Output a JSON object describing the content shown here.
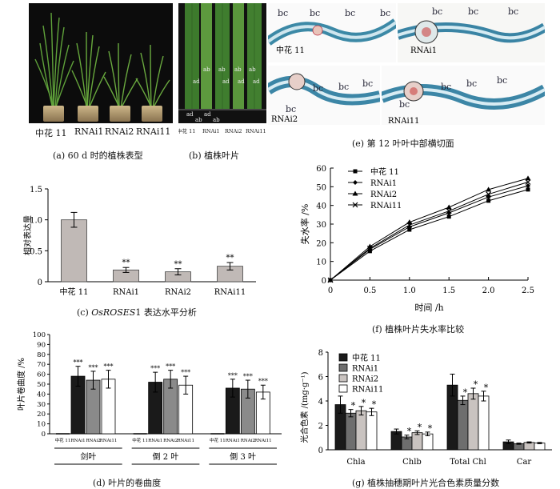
{
  "panel_a": {
    "labels": [
      "中花 11",
      "RNAi1",
      "RNAi2",
      "RNAi11"
    ],
    "caption": "(a)  60 d 时的植株表型"
  },
  "panel_b": {
    "top_labels": [
      "ab",
      "ab",
      "ab",
      "ab"
    ],
    "mid_labels": [
      "ad",
      "ad",
      "ad",
      "ad"
    ],
    "bottom_labels": [
      "ad",
      "ab",
      "ad",
      "ab"
    ],
    "group_labels": [
      "中花 11",
      "RNAi1",
      "RNAi2",
      "RNAi11"
    ],
    "caption": "(b)  植株叶片"
  },
  "panel_e": {
    "tiles": [
      {
        "name": "中花 11",
        "bc": [
          "bc",
          "bc",
          "bc",
          "bc"
        ]
      },
      {
        "name": "RNAi1",
        "bc": [
          "bc",
          "bc",
          "bc"
        ]
      },
      {
        "name": "RNAi2",
        "bc": [
          "bc",
          "bc",
          "bc",
          "bc"
        ]
      },
      {
        "name": "RNAi11",
        "bc": [
          "bc",
          "bc",
          "bc",
          "bc"
        ]
      }
    ],
    "caption": "(e)  第 12 叶叶中部横切面"
  },
  "chart_data": [
    {
      "id": "c",
      "type": "bar",
      "categories": [
        "中花 11",
        "RNAi1",
        "RNAi2",
        "RNAi11"
      ],
      "values": [
        1.0,
        0.19,
        0.16,
        0.25
      ],
      "errors": [
        0.12,
        0.04,
        0.05,
        0.06
      ],
      "sig": [
        "",
        "**",
        "**",
        "**"
      ],
      "ylabel": "相对表达量",
      "ylim": [
        0,
        1.5
      ],
      "yticks": [
        "0",
        "0.5",
        "1.0",
        "1.5"
      ],
      "caption_prefix": "(c)  ",
      "caption_gene": "OsROSES",
      "caption_suffix": "1 表达水平分析",
      "bar_color": "#c0b9b6"
    },
    {
      "id": "f",
      "type": "line",
      "x": [
        0,
        0.5,
        1.0,
        1.5,
        2.0,
        2.5
      ],
      "series": [
        {
          "name": "中花 11",
          "values": [
            0,
            15.5,
            27.0,
            34.0,
            42.5,
            48.5
          ],
          "marker": "square"
        },
        {
          "name": "RNAi1",
          "values": [
            0,
            16.5,
            28.5,
            36.0,
            44.5,
            50.5
          ],
          "marker": "diamond"
        },
        {
          "name": "RNAi2",
          "values": [
            0,
            18.0,
            31.0,
            39.0,
            48.5,
            54.5
          ],
          "marker": "triangle"
        },
        {
          "name": "RNAi11",
          "values": [
            0,
            17.0,
            29.5,
            37.0,
            46.0,
            52.5
          ],
          "marker": "cross"
        }
      ],
      "xlabel": "时间 /h",
      "ylabel": "失水率 /%",
      "xlim": [
        0,
        2.5
      ],
      "ylim": [
        0,
        60
      ],
      "xticks": [
        "0",
        "0.5",
        "1.0",
        "1.5",
        "2.0",
        "2.5"
      ],
      "yticks": [
        "0",
        "10",
        "20",
        "30",
        "40",
        "50",
        "60"
      ],
      "legend": "top-left",
      "caption": "(f)  植株叶片失水率比较"
    },
    {
      "id": "d",
      "type": "bar",
      "groups": [
        "剑叶",
        "倒 2 叶",
        "倒 3 叶"
      ],
      "categories": [
        "中花 11",
        "RNAi1",
        "RNAi2",
        "RNAi11"
      ],
      "values": [
        [
          0,
          58,
          54,
          55
        ],
        [
          0,
          52,
          55,
          49
        ],
        [
          0,
          46,
          45,
          42
        ]
      ],
      "errors": [
        [
          0,
          10,
          9,
          9
        ],
        [
          0,
          10,
          9,
          9
        ],
        [
          0,
          9,
          9,
          7
        ]
      ],
      "sig": [
        [
          "",
          "***",
          "***",
          "***"
        ],
        [
          "",
          "***",
          "***",
          "***"
        ],
        [
          "",
          "***",
          "***",
          "***"
        ]
      ],
      "ylabel": "叶片卷曲度 /%",
      "ylim": [
        0,
        100
      ],
      "yticks": [
        "0",
        "10",
        "20",
        "30",
        "40",
        "50",
        "60",
        "70",
        "80",
        "90",
        "100"
      ],
      "colors": [
        "#ffffff",
        "#1a1a1a",
        "#8a8a8a",
        "#ffffff"
      ],
      "caption": "(d)  叶片的卷曲度"
    },
    {
      "id": "g",
      "type": "bar",
      "categories": [
        "Chla",
        "Chlb",
        "Total Chl",
        "Car"
      ],
      "series": [
        {
          "name": "中花 11",
          "values": [
            3.7,
            1.5,
            5.3,
            0.65
          ],
          "errors": [
            0.7,
            0.2,
            0.9,
            0.15
          ],
          "sig": [
            "",
            "",
            "",
            ""
          ]
        },
        {
          "name": "RNAi1",
          "values": [
            3.0,
            1.05,
            4.05,
            0.5
          ],
          "errors": [
            0.3,
            0.15,
            0.35,
            0.05
          ],
          "sig": [
            "*",
            "*",
            "*",
            ""
          ]
        },
        {
          "name": "RNAi2",
          "values": [
            3.2,
            1.4,
            4.6,
            0.6
          ],
          "errors": [
            0.35,
            0.15,
            0.45,
            0.05
          ],
          "sig": [
            "*",
            "*",
            "*",
            ""
          ]
        },
        {
          "name": "RNAi11",
          "values": [
            3.1,
            1.3,
            4.4,
            0.55
          ],
          "errors": [
            0.3,
            0.15,
            0.4,
            0.05
          ],
          "sig": [
            "*",
            "*",
            "*",
            ""
          ]
        }
      ],
      "ylabel": "光合色素 /(mg·g⁻¹)",
      "ylim": [
        0,
        8
      ],
      "yticks": [
        "0",
        "2",
        "4",
        "6",
        "8"
      ],
      "colors": [
        "#1a1a1a",
        "#6e6e6e",
        "#c9c3c0",
        "#ffffff"
      ],
      "legend": "top-left",
      "caption": "(g)  植株抽穗期叶片光合色素质量分数"
    }
  ]
}
